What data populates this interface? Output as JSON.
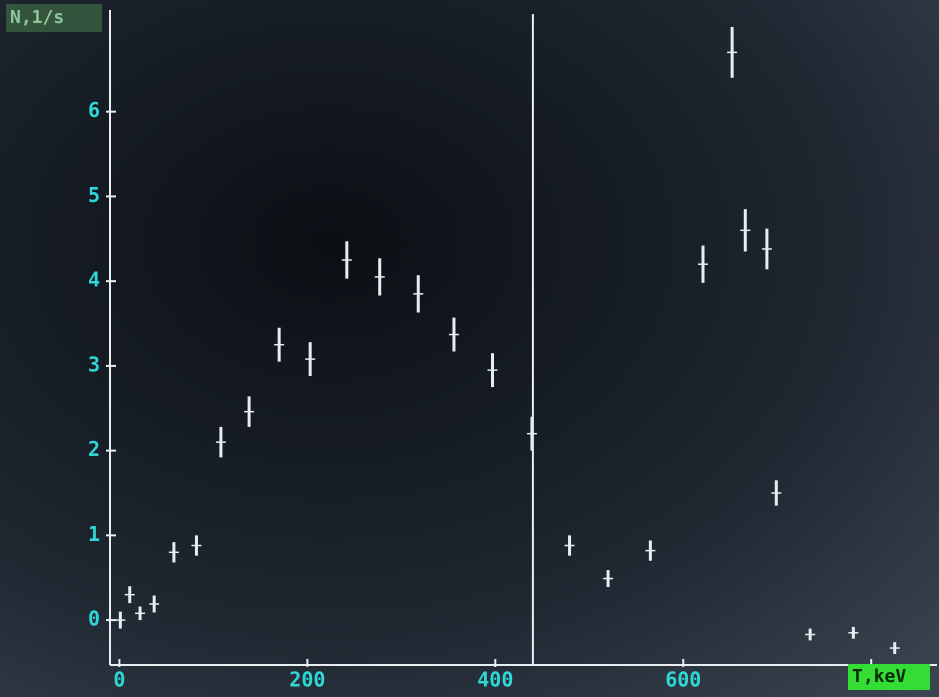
{
  "chart_data": {
    "type": "scatter",
    "y_label": "N,1/s",
    "x_label": "T,keV",
    "x": [
      1,
      11,
      22,
      37,
      58,
      82,
      108,
      138,
      170,
      203,
      242,
      277,
      318,
      356,
      397,
      439,
      479,
      520,
      565,
      621,
      652,
      666,
      689,
      699,
      735,
      781,
      825
    ],
    "values": [
      0,
      0.3,
      0.08,
      0.19,
      0.8,
      0.88,
      2.1,
      2.46,
      3.25,
      3.08,
      4.25,
      4.05,
      3.85,
      3.37,
      2.95,
      2.2,
      0.88,
      0.49,
      0.82,
      4.2,
      6.7,
      4.6,
      4.38,
      1.5,
      -0.17,
      -0.15,
      -0.33
    ],
    "errors": [
      0.1,
      0.1,
      0.08,
      0.1,
      0.12,
      0.12,
      0.18,
      0.18,
      0.2,
      0.2,
      0.22,
      0.22,
      0.22,
      0.2,
      0.2,
      0.2,
      0.12,
      0.1,
      0.12,
      0.22,
      0.3,
      0.25,
      0.24,
      0.15,
      0.07,
      0.07,
      0.07
    ],
    "color": "#e6eef2",
    "marker_x": 440,
    "xlim": [
      -10,
      870
    ],
    "ylim": [
      -0.53,
      7.2
    ],
    "xticks": [
      0,
      200,
      400,
      600,
      800
    ],
    "yticks": [
      0,
      1,
      2,
      3,
      4,
      5,
      6
    ]
  }
}
